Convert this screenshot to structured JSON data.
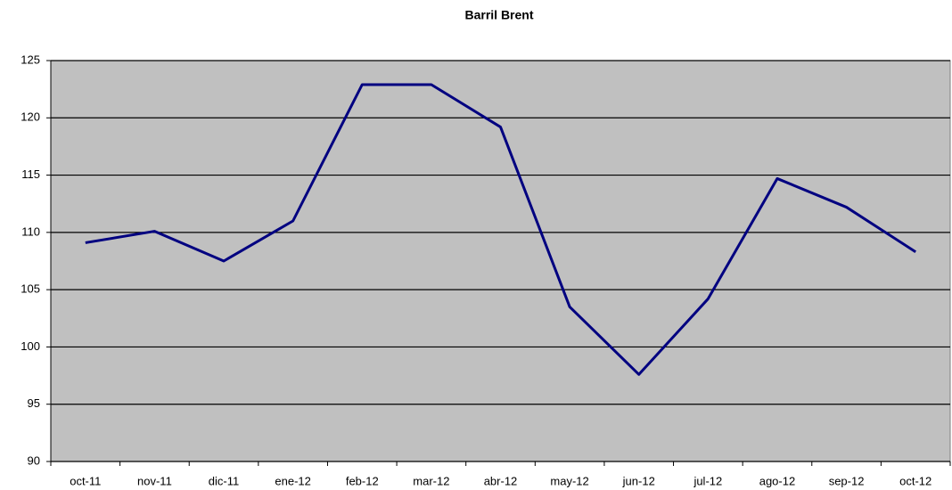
{
  "chart_data": {
    "type": "line",
    "title": "Barril Brent",
    "categories": [
      "oct-11",
      "nov-11",
      "dic-11",
      "ene-12",
      "feb-12",
      "mar-12",
      "abr-12",
      "may-12",
      "jun-12",
      "jul-12",
      "ago-12",
      "sep-12",
      "oct-12"
    ],
    "series": [
      {
        "name": "Barril Brent",
        "color": "#000080",
        "values": [
          109.1,
          110.1,
          107.5,
          111.0,
          122.9,
          122.9,
          119.2,
          103.5,
          97.6,
          104.2,
          114.7,
          112.2,
          108.3
        ]
      }
    ],
    "ylim": [
      90,
      125
    ],
    "yticks": [
      90,
      95,
      100,
      105,
      110,
      115,
      120,
      125
    ],
    "grid": true,
    "plot_background": "#c0c0c0"
  }
}
